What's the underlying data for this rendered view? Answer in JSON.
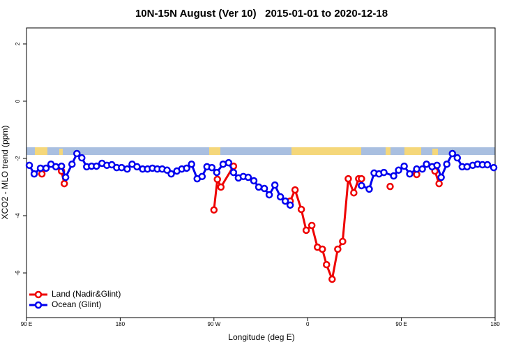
{
  "chart_data": {
    "type": "line",
    "title": "10N-15N August (Ver 10)   2015-01-01 to 2020-12-18",
    "x_label": "Longitude (deg E)",
    "y_label": "XCO2 - MLO trend (ppm)",
    "xlim": [
      90,
      540
    ],
    "xticks": [
      {
        "value": 90,
        "label": "90 E"
      },
      180,
      {
        "value": 270,
        "label": "90 W"
      },
      {
        "value": 360,
        "label": "0"
      },
      {
        "value": 450,
        "label": "90 E"
      },
      {
        "value": 540,
        "label": "180"
      }
    ],
    "ylim": [
      -7.56,
      2.56
    ],
    "yticks": [
      -6,
      -4,
      -2,
      0,
      2
    ],
    "legend": "bottom-left",
    "series": [
      {
        "name": "Land (Nadir&Glint)",
        "color": "#ee0000",
        "x": [
          104.8,
          null,
          123.6,
          126.3,
          null,
          270,
          273.3,
          276.7,
          288.8,
          null,
          343.2,
          347.9,
          353.9,
          358.6,
          364,
          369.4,
          374.1,
          378.1,
          383.5,
          388.9,
          393.6,
          399,
          404.3,
          409,
          411.7,
          null,
          439.2,
          null,
          464.7,
          null,
          482.2,
          486.2
        ],
        "values": [
          -2.54,
          null,
          -2.44,
          -2.88,
          null,
          -3.8,
          -2.73,
          -3.0,
          -2.27,
          null,
          -3.49,
          -3.1,
          -3.78,
          -4.51,
          -4.34,
          -5.1,
          -5.17,
          -5.71,
          -6.22,
          -5.17,
          -4.9,
          -2.71,
          -3.2,
          -2.71,
          -2.71,
          null,
          -2.98,
          null,
          -2.56,
          null,
          -2.44,
          -2.88
        ]
      },
      {
        "name": "Ocean (Glint)",
        "color": "#0000ee",
        "x": [
          92.7,
          97.4,
          103.4,
          108.8,
          113.5,
          118.2,
          123.6,
          127.6,
          133.7,
          138.4,
          143.1,
          147.8,
          152.5,
          157.2,
          162.5,
          167.2,
          171.9,
          176.6,
          181.3,
          186.7,
          191.4,
          196.1,
          201.5,
          206.2,
          210.9,
          215.6,
          220.3,
          225,
          229,
          234.4,
          239.1,
          243.8,
          248.5,
          253.9,
          258.6,
          263.3,
          268,
          272.7,
          278.8,
          284.1,
          288.8,
          293.5,
          298.2,
          302.9,
          308.3,
          313,
          318.4,
          323.1,
          328.5,
          333.8,
          338.5,
          343.2,
          null,
          411.7,
          419.1,
          423.8,
          428.5,
          433.2,
          442.6,
          447.3,
          452.7,
          458,
          464.7,
          470.1,
          474.1,
          479.5,
          484.2,
          488.2,
          493.6,
          499,
          503.7,
          508.4,
          513.1,
          518.5,
          523.2,
          527.9,
          532.6,
          538.7
        ],
        "values": [
          -2.24,
          -2.54,
          -2.34,
          -2.34,
          -2.2,
          -2.29,
          -2.27,
          -2.66,
          -2.2,
          -1.83,
          -1.98,
          -2.29,
          -2.27,
          -2.27,
          -2.17,
          -2.24,
          -2.22,
          -2.32,
          -2.32,
          -2.37,
          -2.2,
          -2.29,
          -2.37,
          -2.37,
          -2.34,
          -2.37,
          -2.37,
          -2.41,
          -2.54,
          -2.44,
          -2.37,
          -2.34,
          -2.2,
          -2.71,
          -2.63,
          -2.29,
          -2.32,
          -2.49,
          -2.2,
          -2.15,
          -2.49,
          -2.68,
          -2.63,
          -2.66,
          -2.78,
          -3.0,
          -3.05,
          -3.27,
          -2.93,
          -3.34,
          -3.49,
          -3.63,
          null,
          -2.95,
          -3.07,
          -2.51,
          -2.54,
          -2.49,
          -2.61,
          -2.41,
          -2.27,
          -2.54,
          -2.37,
          -2.37,
          -2.2,
          -2.29,
          -2.24,
          -2.66,
          -2.2,
          -1.83,
          -1.98,
          -2.29,
          -2.29,
          -2.24,
          -2.2,
          -2.22,
          -2.22,
          -2.32
        ]
      }
    ]
  }
}
